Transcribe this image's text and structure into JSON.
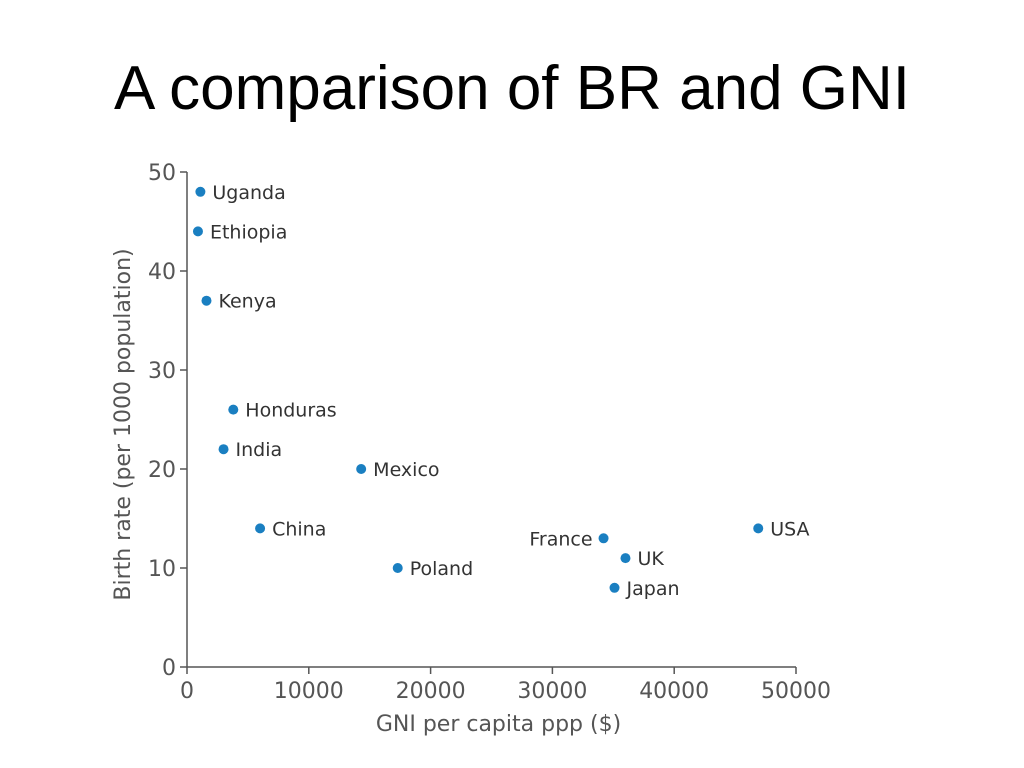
{
  "slide": {
    "title": "A comparison of BR and GNI"
  },
  "colors": {
    "point": "#1a7fc1",
    "axis": "#555555",
    "label": "#333333"
  },
  "chart_data": {
    "type": "scatter",
    "title": "",
    "xlabel": "GNI per capita ppp ($)",
    "ylabel": "Birth rate (per 1000 population)",
    "xlim": [
      0,
      50000
    ],
    "ylim": [
      0,
      50
    ],
    "xticks": [
      0,
      10000,
      20000,
      30000,
      40000,
      50000
    ],
    "xtick_labels": [
      "0",
      "10000",
      "20000",
      "30000",
      "40000",
      "50000"
    ],
    "yticks": [
      0,
      10,
      20,
      30,
      40,
      50
    ],
    "ytick_labels": [
      "0",
      "10",
      "20",
      "30",
      "40",
      "50"
    ],
    "grid": false,
    "legend": "none",
    "points": [
      {
        "label": "Uganda",
        "x": 1100,
        "y": 48,
        "label_side": "right"
      },
      {
        "label": "Ethiopia",
        "x": 900,
        "y": 44,
        "label_side": "right"
      },
      {
        "label": "Kenya",
        "x": 1600,
        "y": 37,
        "label_side": "right"
      },
      {
        "label": "Honduras",
        "x": 3800,
        "y": 26,
        "label_side": "right"
      },
      {
        "label": "India",
        "x": 3000,
        "y": 22,
        "label_side": "right"
      },
      {
        "label": "Mexico",
        "x": 14300,
        "y": 20,
        "label_side": "right"
      },
      {
        "label": "China",
        "x": 6000,
        "y": 14,
        "label_side": "right"
      },
      {
        "label": "Poland",
        "x": 17300,
        "y": 10,
        "label_side": "right"
      },
      {
        "label": "France",
        "x": 34200,
        "y": 13,
        "label_side": "left"
      },
      {
        "label": "UK",
        "x": 36000,
        "y": 11,
        "label_side": "right"
      },
      {
        "label": "Japan",
        "x": 35100,
        "y": 8,
        "label_side": "right"
      },
      {
        "label": "USA",
        "x": 46900,
        "y": 14,
        "label_side": "right"
      }
    ]
  }
}
